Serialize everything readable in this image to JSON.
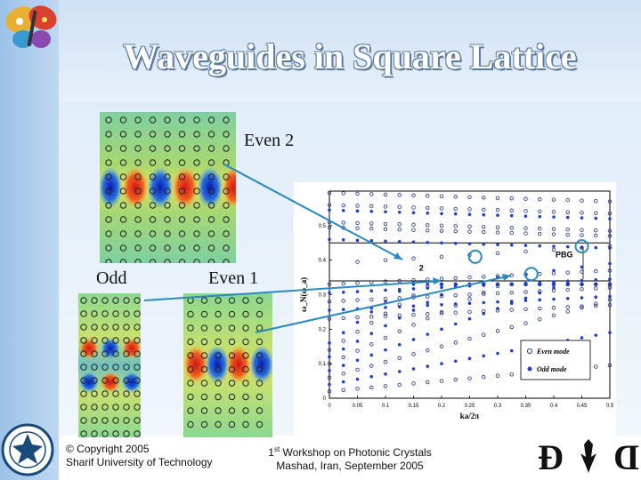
{
  "slide": {
    "title": "Waveguides in Square Lattice",
    "labels": {
      "even2": "Even 2",
      "odd": "Odd",
      "even1": "Even 1"
    }
  },
  "footer": {
    "copyright_line1": "© Copyright 2005",
    "copyright_line2": "Sharif University of Technology",
    "workshop_line1_sup": "st",
    "workshop_line1_pre": "1",
    "workshop_line1_post": " Workshop on Photonic Crystals",
    "workshop_line2": "Mashad, Iran, September 2005"
  },
  "chart_data": {
    "type": "scatter",
    "xlabel": "ka/2π",
    "ylabel": "ω_N(ω_a)",
    "xlim": [
      0,
      0.5
    ],
    "ylim": [
      0,
      0.6
    ],
    "xticks": [
      "0",
      "0.05",
      "0.1",
      "0.15",
      "0.2",
      "0.25",
      "0.3",
      "0.35",
      "0.4",
      "0.45",
      "0.5"
    ],
    "yticks": [
      "0",
      "0.1",
      "0.2",
      "0.3",
      "0.4",
      "0.5"
    ],
    "annotations": [
      "PBG",
      "2"
    ],
    "legend": [
      "Even mode",
      "Odd mode"
    ],
    "legend_position": "bottom-right",
    "pbg_band": [
      0.34,
      0.45
    ],
    "colors": {
      "even": "#1a2a8a",
      "odd": "#1f3fd0",
      "highlight": "#2a8ac0"
    }
  },
  "icons": {
    "top_left": "butterfly-logo",
    "bottom_left": "sharif-seal-icon",
    "bottom_right": "ddc-logo"
  }
}
